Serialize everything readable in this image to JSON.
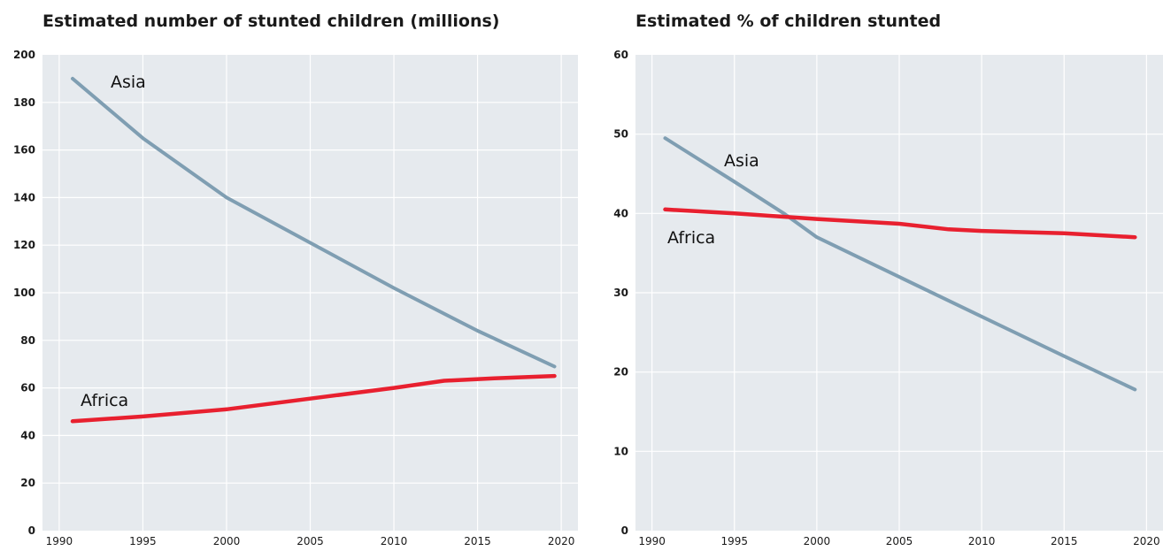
{
  "chart_data": [
    {
      "type": "line",
      "title": "Estimated number of stunted children (millions)",
      "xlabel": "",
      "ylabel": "",
      "xlim": [
        1989,
        2021
      ],
      "ylim": [
        0,
        200
      ],
      "xticks": [
        1990,
        1995,
        2000,
        2005,
        2010,
        2015,
        2020
      ],
      "yticks": [
        0,
        20,
        40,
        60,
        80,
        100,
        120,
        140,
        160,
        180,
        200
      ],
      "grid": true,
      "series": [
        {
          "name": "Asia",
          "color": "#7f9eb2",
          "x": [
            1990.8,
            1995,
            2000,
            2005,
            2010,
            2015,
            2019.6
          ],
          "y": [
            190,
            165,
            140,
            121,
            102,
            84,
            69
          ]
        },
        {
          "name": "Africa",
          "color": "#e8202f",
          "x": [
            1990.8,
            1995,
            2000,
            2005,
            2010,
            2013,
            2016,
            2019.6
          ],
          "y": [
            46,
            48,
            51,
            55.5,
            60,
            63,
            64,
            65
          ]
        }
      ]
    },
    {
      "type": "line",
      "title": "Estimated % of children stunted",
      "xlabel": "",
      "ylabel": "",
      "xlim": [
        1989,
        2021
      ],
      "ylim": [
        0,
        60
      ],
      "xticks": [
        1990,
        1995,
        2000,
        2005,
        2010,
        2015,
        2020
      ],
      "yticks": [
        0,
        10,
        20,
        30,
        40,
        50,
        60
      ],
      "grid": true,
      "series": [
        {
          "name": "Asia",
          "color": "#7f9eb2",
          "x": [
            1990.8,
            1995,
            1998,
            2000,
            2005,
            2010,
            2015,
            2019.3
          ],
          "y": [
            49.5,
            44,
            40,
            37,
            32,
            27,
            22,
            17.8
          ]
        },
        {
          "name": "Africa",
          "color": "#e8202f",
          "x": [
            1990.8,
            1995,
            2000,
            2005,
            2008,
            2010,
            2015,
            2019.3
          ],
          "y": [
            40.5,
            40,
            39.3,
            38.7,
            38,
            37.8,
            37.5,
            37
          ]
        }
      ]
    }
  ]
}
